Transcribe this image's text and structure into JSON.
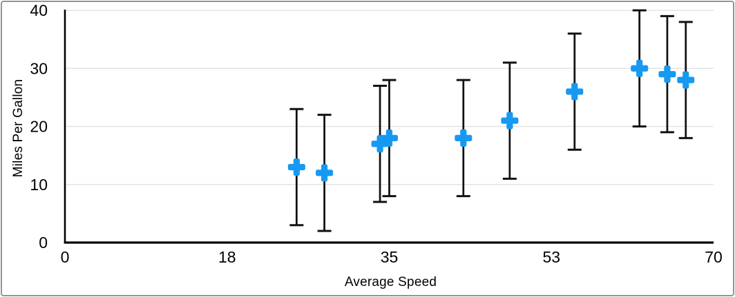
{
  "frame": {
    "border_color": "#949494",
    "background": "#ffffff"
  },
  "chart_data": {
    "type": "scatter",
    "xlabel": "Average Speed",
    "ylabel": "Miles Per Gallon",
    "points": [
      {
        "x": 25,
        "y": 13
      },
      {
        "x": 28,
        "y": 12
      },
      {
        "x": 34,
        "y": 17
      },
      {
        "x": 35,
        "y": 18
      },
      {
        "x": 43,
        "y": 18
      },
      {
        "x": 48,
        "y": 21
      },
      {
        "x": 55,
        "y": 26
      },
      {
        "x": 62,
        "y": 30
      },
      {
        "x": 65,
        "y": 29
      },
      {
        "x": 67,
        "y": 28
      }
    ],
    "error_y": {
      "plus": 10,
      "minus": 10
    },
    "xlim": [
      0,
      70
    ],
    "ylim": [
      0,
      40
    ],
    "x_tick_positions": [
      0,
      17.5,
      35,
      52.5,
      70
    ],
    "x_tick_labels": [
      "0",
      "18",
      "35",
      "53",
      "70"
    ],
    "y_tick_positions": [
      0,
      10,
      20,
      30,
      40
    ],
    "y_tick_labels": [
      "0",
      "10",
      "20",
      "30",
      "40"
    ],
    "grid": "horizontal",
    "legend": "none",
    "marker": "plus",
    "colors": {
      "marker": "#1799F2",
      "error_bar": "#111111",
      "axis": "#000000",
      "gridline": "#E3E3E3",
      "text": "#000000"
    }
  }
}
